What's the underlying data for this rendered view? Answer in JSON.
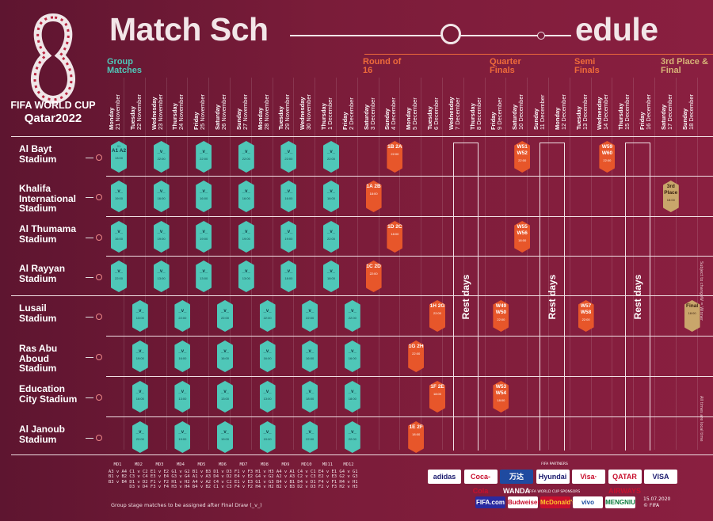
{
  "brand": {
    "line1": "FIFA WORLD CUP",
    "line2": "Qatar2022"
  },
  "title": {
    "left": "Match Sch",
    "right": "edule"
  },
  "sections": [
    "Group Matches",
    "Round of 16",
    "Quarter Finals",
    "Semi Finals",
    "3rd Place & Final"
  ],
  "dates": [
    [
      "Monday",
      "21 November"
    ],
    [
      "Tuesday",
      "22 November"
    ],
    [
      "Wednesday",
      "23 November"
    ],
    [
      "Thursday",
      "24 November"
    ],
    [
      "Friday",
      "25 November"
    ],
    [
      "Saturday",
      "26 November"
    ],
    [
      "Sunday",
      "27 November"
    ],
    [
      "Monday",
      "28 November"
    ],
    [
      "Tuesday",
      "29 November"
    ],
    [
      "Wednesday",
      "30 November"
    ],
    [
      "Thursday",
      "1 December"
    ],
    [
      "Friday",
      "2 December"
    ],
    [
      "Saturday",
      "3 December"
    ],
    [
      "Sunday",
      "4 December"
    ],
    [
      "Monday",
      "5 December"
    ],
    [
      "Tuesday",
      "6 December"
    ],
    [
      "Wednesday",
      "7 December"
    ],
    [
      "Thursday",
      "8 December"
    ],
    [
      "Friday",
      "9 December"
    ],
    [
      "Saturday",
      "10 December"
    ],
    [
      "Sunday",
      "11 December"
    ],
    [
      "Monday",
      "12 December"
    ],
    [
      "Tuesday",
      "13 December"
    ],
    [
      "Wednesday",
      "14 December"
    ],
    [
      "Thursday",
      "15 December"
    ],
    [
      "Friday",
      "16 December"
    ],
    [
      "Saturday",
      "17 December"
    ],
    [
      "Sunday",
      "18 December"
    ]
  ],
  "stadiums": [
    "Al Bayt Stadium",
    "Khalifa International Stadium",
    "Al Thumama Stadium",
    "Al Rayyan Stadium",
    "Lusail Stadium",
    "Ras Abu Aboud Stadium",
    "Education City Stadium",
    "Al Janoub Stadium"
  ],
  "group_placeholder": "_v_",
  "matches": [
    {
      "r": 0,
      "c": 0,
      "n": "01",
      "g": "A1 A2",
      "t": "13:00"
    },
    {
      "r": 0,
      "c": 2,
      "n": "",
      "g": "_v_",
      "t": "22:00"
    },
    {
      "r": 0,
      "c": 4,
      "n": "",
      "g": "_v_",
      "t": "22:00"
    },
    {
      "r": 0,
      "c": 6,
      "n": "",
      "g": "_v_",
      "t": "22:00"
    },
    {
      "r": 0,
      "c": 8,
      "n": "",
      "g": "_v_",
      "t": "22:00"
    },
    {
      "r": 0,
      "c": 10,
      "n": "",
      "g": "_v_",
      "t": "22:00"
    },
    {
      "r": 0,
      "c": 13,
      "n": "",
      "g": "1B 2A",
      "t": "22:00",
      "ko": 1
    },
    {
      "r": 0,
      "c": 19,
      "n": "",
      "g": "W51 W52",
      "t": "22:00",
      "ko": 1
    },
    {
      "r": 0,
      "c": 23,
      "n": "",
      "g": "W59 W60",
      "t": "22:00",
      "ko": 1
    },
    {
      "r": 1,
      "c": 0,
      "n": "",
      "g": "_v_",
      "t": "19:00"
    },
    {
      "r": 1,
      "c": 2,
      "n": "",
      "g": "_v_",
      "t": "16:00"
    },
    {
      "r": 1,
      "c": 4,
      "n": "",
      "g": "_v_",
      "t": "16:00"
    },
    {
      "r": 1,
      "c": 6,
      "n": "",
      "g": "_v_",
      "t": "16:00"
    },
    {
      "r": 1,
      "c": 8,
      "n": "",
      "g": "_v_",
      "t": "16:00"
    },
    {
      "r": 1,
      "c": 10,
      "n": "",
      "g": "_v_",
      "t": "16:00"
    },
    {
      "r": 1,
      "c": 12,
      "n": "",
      "g": "1A 2B",
      "t": "18:00",
      "ko": 1
    },
    {
      "r": 1,
      "c": 26,
      "n": "",
      "g": "3rd Place",
      "t": "18:00",
      "fin": 1
    },
    {
      "r": 2,
      "c": 0,
      "n": "",
      "g": "_v_",
      "t": "16:00"
    },
    {
      "r": 2,
      "c": 2,
      "n": "",
      "g": "_v_",
      "t": "19:00"
    },
    {
      "r": 2,
      "c": 4,
      "n": "",
      "g": "_v_",
      "t": "19:00"
    },
    {
      "r": 2,
      "c": 6,
      "n": "",
      "g": "_v_",
      "t": "19:00"
    },
    {
      "r": 2,
      "c": 8,
      "n": "",
      "g": "_v_",
      "t": "19:00"
    },
    {
      "r": 2,
      "c": 10,
      "n": "",
      "g": "_v_",
      "t": "22:00"
    },
    {
      "r": 2,
      "c": 13,
      "n": "",
      "g": "1D 2C",
      "t": "18:00",
      "ko": 1
    },
    {
      "r": 2,
      "c": 19,
      "n": "",
      "g": "W55 W56",
      "t": "18:00",
      "ko": 1
    },
    {
      "r": 3,
      "c": 0,
      "n": "",
      "g": "_v_",
      "t": "22:00"
    },
    {
      "r": 3,
      "c": 2,
      "n": "",
      "g": "_v_",
      "t": "13:00"
    },
    {
      "r": 3,
      "c": 4,
      "n": "",
      "g": "_v_",
      "t": "13:00"
    },
    {
      "r": 3,
      "c": 6,
      "n": "",
      "g": "_v_",
      "t": "13:00"
    },
    {
      "r": 3,
      "c": 8,
      "n": "",
      "g": "_v_",
      "t": "18:00"
    },
    {
      "r": 3,
      "c": 10,
      "n": "",
      "g": "_v_",
      "t": "18:00"
    },
    {
      "r": 3,
      "c": 12,
      "n": "",
      "g": "1C 2D",
      "t": "22:00",
      "ko": 1
    },
    {
      "r": 4,
      "c": 1,
      "n": "",
      "g": "_v_",
      "t": "13:00"
    },
    {
      "r": 4,
      "c": 3,
      "n": "",
      "g": "_v_",
      "t": "22:00"
    },
    {
      "r": 4,
      "c": 5,
      "n": "",
      "g": "_v_",
      "t": "22:00"
    },
    {
      "r": 4,
      "c": 7,
      "n": "",
      "g": "_v_",
      "t": "22:00"
    },
    {
      "r": 4,
      "c": 9,
      "n": "",
      "g": "_v_",
      "t": "22:00"
    },
    {
      "r": 4,
      "c": 11,
      "n": "",
      "g": "_v_",
      "t": "22:00"
    },
    {
      "r": 4,
      "c": 15,
      "n": "",
      "g": "1H 2G",
      "t": "22:00",
      "ko": 1
    },
    {
      "r": 4,
      "c": 18,
      "n": "",
      "g": "W49 W50",
      "t": "22:00",
      "ko": 1
    },
    {
      "r": 4,
      "c": 22,
      "n": "",
      "g": "W57 W58",
      "t": "22:00",
      "ko": 1
    },
    {
      "r": 4,
      "c": 27,
      "n": "",
      "g": "Final",
      "t": "18:00",
      "fin": 1
    },
    {
      "r": 5,
      "c": 1,
      "n": "",
      "g": "_v_",
      "t": "19:00"
    },
    {
      "r": 5,
      "c": 3,
      "n": "",
      "g": "_v_",
      "t": "16:00"
    },
    {
      "r": 5,
      "c": 5,
      "n": "",
      "g": "_v_",
      "t": "16:00"
    },
    {
      "r": 5,
      "c": 7,
      "n": "",
      "g": "_v_",
      "t": "16:00"
    },
    {
      "r": 5,
      "c": 9,
      "n": "",
      "g": "_v_",
      "t": "16:00"
    },
    {
      "r": 5,
      "c": 11,
      "n": "",
      "g": "_v_",
      "t": "16:00"
    },
    {
      "r": 5,
      "c": 14,
      "n": "",
      "g": "1G 2H",
      "t": "22:00",
      "ko": 1
    },
    {
      "r": 6,
      "c": 1,
      "n": "",
      "g": "_v_",
      "t": "16:00"
    },
    {
      "r": 6,
      "c": 3,
      "n": "",
      "g": "_v_",
      "t": "13:00"
    },
    {
      "r": 6,
      "c": 5,
      "n": "",
      "g": "_v_",
      "t": "13:00"
    },
    {
      "r": 6,
      "c": 7,
      "n": "",
      "g": "_v_",
      "t": "13:00"
    },
    {
      "r": 6,
      "c": 9,
      "n": "",
      "g": "_v_",
      "t": "18:00"
    },
    {
      "r": 6,
      "c": 11,
      "n": "",
      "g": "_v_",
      "t": "18:00"
    },
    {
      "r": 6,
      "c": 15,
      "n": "",
      "g": "1F 2E",
      "t": "18:00",
      "ko": 1
    },
    {
      "r": 6,
      "c": 18,
      "n": "",
      "g": "W53 W54",
      "t": "18:00",
      "ko": 1
    },
    {
      "r": 7,
      "c": 1,
      "n": "",
      "g": "_v_",
      "t": "22:00"
    },
    {
      "r": 7,
      "c": 3,
      "n": "",
      "g": "_v_",
      "t": "19:00"
    },
    {
      "r": 7,
      "c": 5,
      "n": "",
      "g": "_v_",
      "t": "19:00"
    },
    {
      "r": 7,
      "c": 7,
      "n": "",
      "g": "_v_",
      "t": "19:00"
    },
    {
      "r": 7,
      "c": 9,
      "n": "",
      "g": "_v_",
      "t": "22:00"
    },
    {
      "r": 7,
      "c": 11,
      "n": "",
      "g": "_v_",
      "t": "22:00"
    },
    {
      "r": 7,
      "c": 14,
      "n": "",
      "g": "1E 2F",
      "t": "18:00",
      "ko": 1
    }
  ],
  "rest_label": "Rest days",
  "matchdays": [
    {
      "md": "MD1",
      "pairs": [
        "A3 v A4",
        "B1 v B2",
        "B3 v B4"
      ]
    },
    {
      "md": "MD2",
      "pairs": [
        "C1 v C2",
        "C3 v C4",
        "D1 v D2",
        "D3 v D4"
      ]
    },
    {
      "md": "MD3",
      "pairs": [
        "E1 v E2",
        "E3 v E4",
        "F1 v F2",
        "F3 v F4"
      ]
    },
    {
      "md": "MD4",
      "pairs": [
        "G1 v G2",
        "G3 v G4",
        "H1 v H2",
        "H3 v H4"
      ]
    },
    {
      "md": "MD5",
      "pairs": [
        "B1 v B3",
        "A1 v A3",
        "A4 v A2",
        "B4 v B2"
      ]
    },
    {
      "md": "MD6",
      "pairs": [
        "D1 v D3",
        "D4 v D2",
        "C4 v C2",
        "C1 v C3"
      ]
    },
    {
      "md": "MD7",
      "pairs": [
        "F1 v F3",
        "E4 v E2",
        "E1 v E3",
        "F4 v F2"
      ]
    },
    {
      "md": "MD8",
      "pairs": [
        "H1 v H3",
        "G4 v G2",
        "G1 v G3",
        "H4 v H2"
      ]
    },
    {
      "md": "MD9",
      "pairs": [
        "A4 v A1",
        "A2 v A3",
        "B4 v B1",
        "B2 v B3"
      ]
    },
    {
      "md": "MD10",
      "pairs": [
        "C4 v C1",
        "C2 v C3",
        "D4 v D1",
        "D2 v D3"
      ]
    },
    {
      "md": "MD11",
      "pairs": [
        "E4 v E1",
        "E2 v E3",
        "F4 v F1",
        "F2 v F3"
      ]
    },
    {
      "md": "MD12",
      "pairs": [
        "G4 v G1",
        "G2 v G3",
        "H4 v H1",
        "H2 v H3"
      ]
    }
  ],
  "footnote": "Group stage matches to be assigned after Final Draw (_v_)",
  "partners_label": "FIFA PARTNERS",
  "sponsors_label": "FIFA WORLD CUP SPONSORS",
  "partners": [
    "adidas",
    "Coca-Cola",
    "万达 WANDA",
    "Hyundai",
    "Visa·",
    "QATAR AIRWAYS",
    "VISA"
  ],
  "sponsors": [
    "FIFA.com",
    "Budweiser",
    "McDonald's",
    "vivo",
    "MENGNIU"
  ],
  "date_stamp": "15.07.2020",
  "copyright": "© FIFA",
  "side_notes": [
    "Subject to change",
    "All times are local time",
    "W = Winner"
  ],
  "colors": {
    "group": "#4fc7b8",
    "knockout": "#e7562a",
    "final": "#c9a66b",
    "background": "#7a1c39"
  }
}
